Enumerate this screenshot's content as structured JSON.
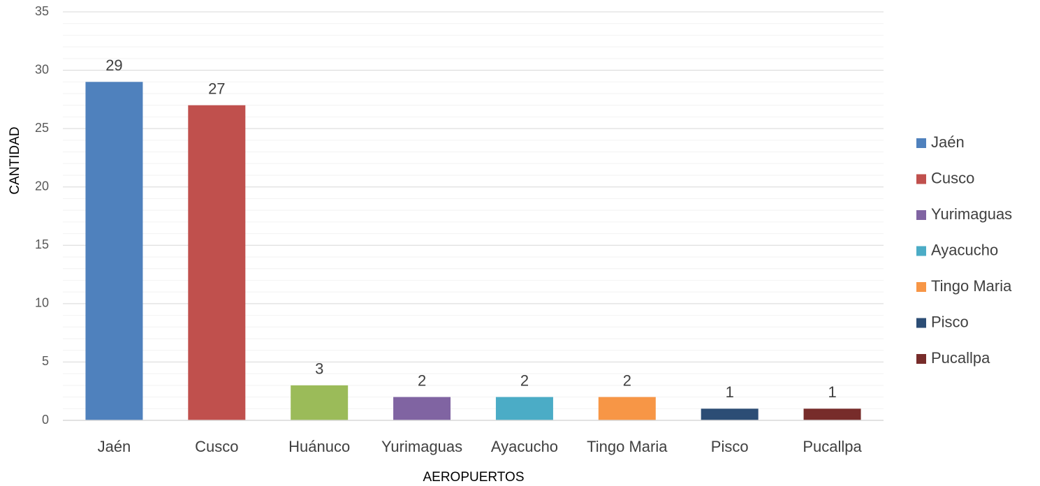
{
  "chart_data": {
    "type": "bar",
    "x_label": "AEROPUERTOS",
    "y_label": "CANTIDAD",
    "categories": [
      "Jaén",
      "Cusco",
      "Huánuco",
      "Yurimaguas",
      "Ayacucho",
      "Tingo Maria",
      "Pisco",
      "Pucallpa"
    ],
    "values": [
      29,
      27,
      3,
      2,
      2,
      2,
      1,
      1
    ],
    "colors": [
      "#4f81bd",
      "#c0504d",
      "#9bbb59",
      "#8064a2",
      "#4bacc6",
      "#f79646",
      "#2c4d75",
      "#772c2a"
    ],
    "ylim": [
      0,
      35
    ],
    "yticks": [
      0,
      5,
      10,
      15,
      20,
      25,
      30,
      35
    ],
    "grid": true,
    "minor_grid_step": 1,
    "legend": [
      {
        "name": "Jaén",
        "color": "#4f81bd"
      },
      {
        "name": "Cusco",
        "color": "#c0504d"
      },
      {
        "name": "Yurimaguas",
        "color": "#8064a2"
      },
      {
        "name": "Ayacucho",
        "color": "#4bacc6"
      },
      {
        "name": "Tingo Maria",
        "color": "#f79646"
      },
      {
        "name": "Pisco",
        "color": "#2c4d75"
      },
      {
        "name": "Pucallpa",
        "color": "#772c2a"
      }
    ],
    "legend_position": "right"
  }
}
